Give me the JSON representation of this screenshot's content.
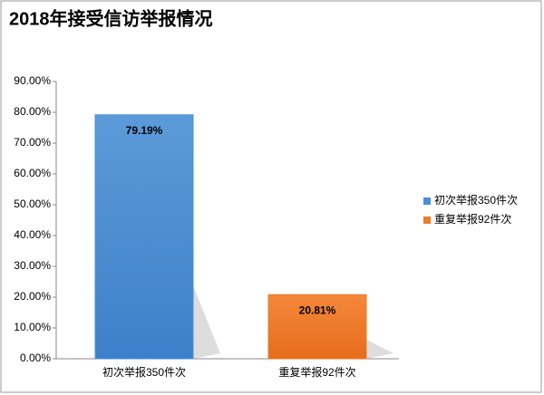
{
  "chart_data": {
    "type": "bar",
    "title": "2018年接受信访举报情况",
    "categories": [
      "初次举报350件次",
      "重复举报92件次"
    ],
    "values": [
      79.19,
      20.81
    ],
    "value_labels": [
      "79.19%",
      "20.81%"
    ],
    "colors": [
      "#4a8fd6",
      "#ef7a2a"
    ],
    "ylim": [
      0,
      90
    ],
    "yticks": [
      {
        "value": 0,
        "label": "0.00%"
      },
      {
        "value": 10,
        "label": "10.00%"
      },
      {
        "value": 20,
        "label": "20.00%"
      },
      {
        "value": 30,
        "label": "30.00%"
      },
      {
        "value": 40,
        "label": "40.00%"
      },
      {
        "value": 50,
        "label": "50.00%"
      },
      {
        "value": 60,
        "label": "60.00%"
      },
      {
        "value": 70,
        "label": "70.00%"
      },
      {
        "value": 80,
        "label": "80.00%"
      },
      {
        "value": 90,
        "label": "90.00%"
      }
    ],
    "grid": false,
    "legend": "right"
  }
}
